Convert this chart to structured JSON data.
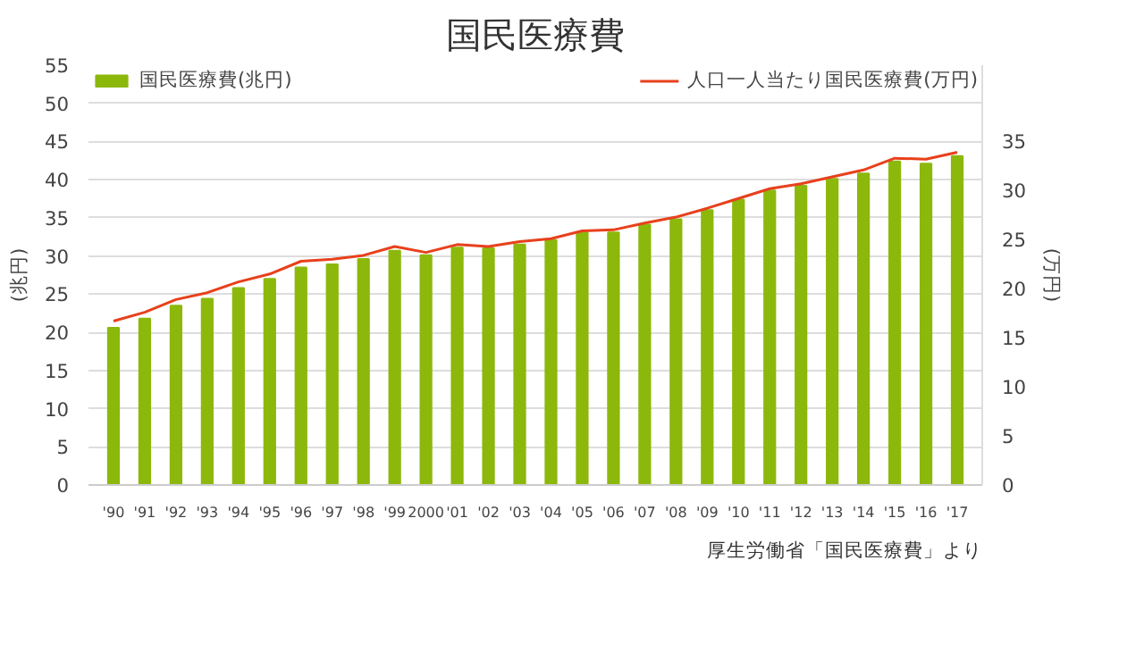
{
  "chart_data": {
    "type": "bar",
    "title": "国民医療費",
    "ylabel": "(兆円)",
    "y2label": "(万円)",
    "categories": [
      "'90",
      "'91",
      "'92",
      "'93",
      "'94",
      "'95",
      "'96",
      "'97",
      "'98",
      "'99",
      "2000",
      "'01",
      "'02",
      "'03",
      "'04",
      "'05",
      "'06",
      "'07",
      "'08",
      "'09",
      "'10",
      "'11",
      "'12",
      "'13",
      "'14",
      "'15",
      "'16",
      "'17"
    ],
    "series": [
      {
        "name": "国民医療費(兆円)",
        "color": "#8cb80c",
        "values": [
          20.6,
          21.8,
          23.5,
          24.4,
          25.8,
          27.0,
          28.5,
          28.9,
          29.6,
          30.7,
          30.1,
          31.1,
          31.0,
          31.5,
          32.1,
          33.1,
          33.1,
          34.1,
          34.8,
          36.0,
          37.4,
          38.6,
          39.2,
          40.1,
          40.8,
          42.4,
          42.1,
          43.1
        ]
      },
      {
        "name": "人口一人当たり国民医療費(万円)",
        "type": "line",
        "axis": "y2",
        "color": "#e8401c",
        "values": [
          16.7,
          17.6,
          18.9,
          19.6,
          20.7,
          21.5,
          22.8,
          23.0,
          23.4,
          24.3,
          23.7,
          24.5,
          24.3,
          24.8,
          25.1,
          25.9,
          26.0,
          26.7,
          27.3,
          28.2,
          29.2,
          30.2,
          30.7,
          31.4,
          32.1,
          33.3,
          33.2,
          33.9
        ]
      }
    ],
    "ylim": [
      0,
      55
    ],
    "yticks": [
      0,
      5,
      10,
      15,
      20,
      25,
      30,
      35,
      40,
      45,
      50,
      55
    ],
    "y2lim": [
      0,
      42.78
    ],
    "y2ticks": [
      0,
      5,
      10,
      15,
      20,
      25,
      30,
      35
    ],
    "grid": "y",
    "legend": "top",
    "annotations": [
      "厚生労働省「国民医療費」より"
    ]
  }
}
